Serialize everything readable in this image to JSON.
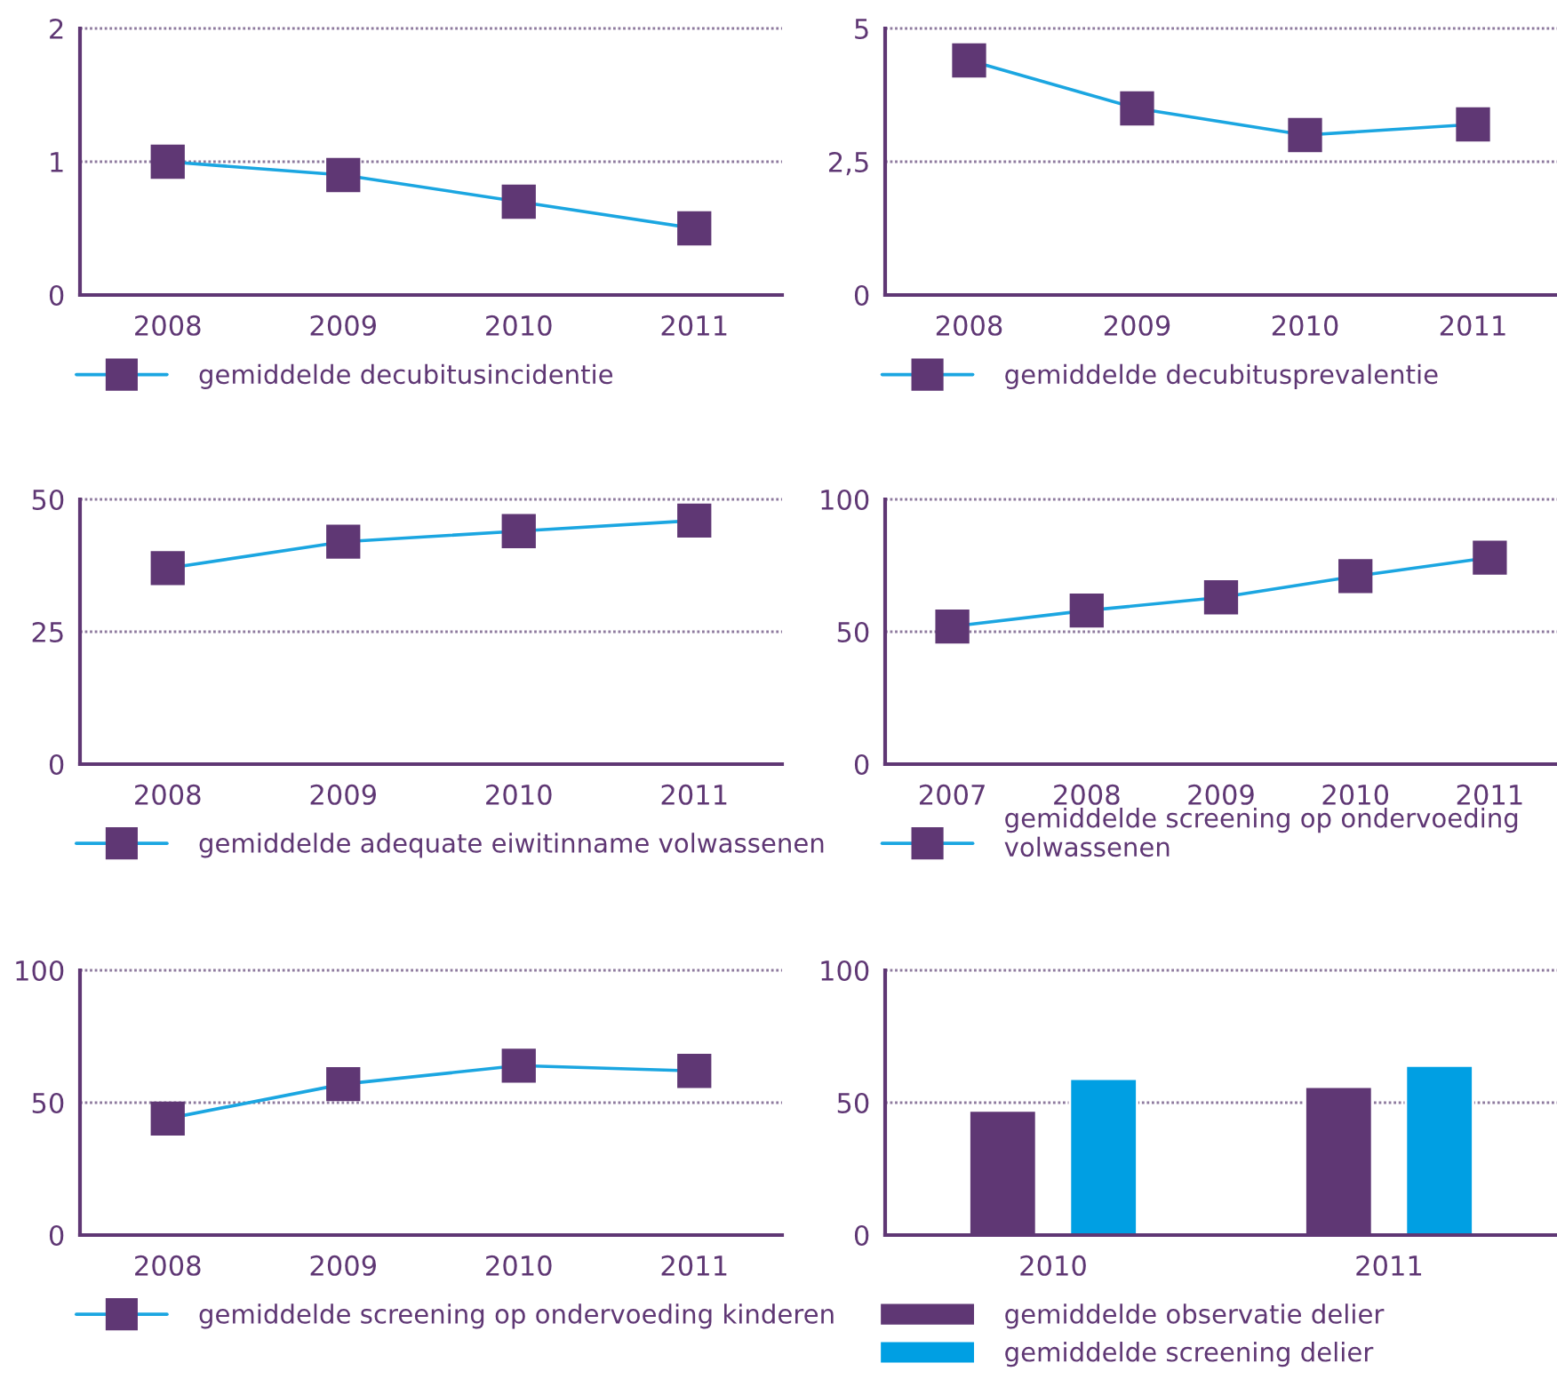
{
  "chart_data": [
    {
      "type": "line",
      "categories": [
        "2008",
        "2009",
        "2010",
        "2011"
      ],
      "series": [
        {
          "name": "gemiddelde decubitusincidentie",
          "color": "#1ba6e1",
          "colors": [
            "#5f3774",
            "#5f3774",
            "#5f3774",
            "#5f3774"
          ],
          "values": [
            1.0,
            0.9,
            0.7,
            0.5
          ]
        }
      ],
      "ylim": [
        0,
        2
      ],
      "yticks": [
        0,
        1,
        2
      ],
      "grid": "y",
      "legend": "bottom",
      "marker": "square",
      "line_style": "solid"
    },
    {
      "type": "line",
      "categories": [
        "2008",
        "2009",
        "2010",
        "2011"
      ],
      "series": [
        {
          "name": "gemiddelde decubitusprevalentie",
          "color": "#1ba6e1",
          "colors": [
            "#5f3774",
            "#5f3774",
            "#5f3774",
            "#5f3774"
          ],
          "values": [
            4.4,
            3.5,
            3.0,
            3.2
          ]
        }
      ],
      "ylim": [
        0,
        5
      ],
      "yticks": [
        0,
        {
          "value": 2.5,
          "label": "2,5"
        },
        5
      ],
      "grid": "y",
      "legend": "bottom",
      "marker": "square",
      "line_style": "solid"
    },
    {
      "type": "line",
      "categories": [
        "2008",
        "2009",
        "2010",
        "2011"
      ],
      "series": [
        {
          "name": "gemiddelde adequate eiwitinname volwassenen",
          "color": "#1ba6e1",
          "colors": [
            "#5f3774",
            "#5f3774",
            "#5f3774",
            "#5f3774"
          ],
          "values": [
            37,
            42,
            44,
            46
          ]
        }
      ],
      "ylim": [
        0,
        50
      ],
      "yticks": [
        0,
        25,
        50
      ],
      "grid": "y",
      "legend": "bottom",
      "marker": "square",
      "line_style": "solid"
    },
    {
      "type": "line",
      "categories": [
        "2007",
        "2008",
        "2009",
        "2010",
        "2011"
      ],
      "series": [
        {
          "name": "gemiddelde screening op ondervoeding volwassenen",
          "color": "#1ba6e1",
          "colors": [
            "#5f3774",
            "#5f3774",
            "#5f3774",
            "#5f3774",
            "#5f3774"
          ],
          "values": [
            52,
            58,
            63,
            71,
            78
          ]
        }
      ],
      "ylim": [
        0,
        100
      ],
      "yticks": [
        0,
        50,
        100
      ],
      "grid": "y",
      "legend": "bottom",
      "marker": "square",
      "line_style": "solid"
    },
    {
      "type": "line",
      "categories": [
        "2008",
        "2009",
        "2010",
        "2011"
      ],
      "series": [
        {
          "name": "gemiddelde screening op ondervoeding kinderen",
          "color": "#1ba6e1",
          "colors": [
            "#5f3774",
            "#5f3774",
            "#5f3774",
            "#5f3774"
          ],
          "values": [
            44,
            57,
            64,
            62
          ]
        }
      ],
      "ylim": [
        0,
        100
      ],
      "yticks": [
        0,
        50,
        100
      ],
      "grid": "y",
      "legend": "bottom",
      "marker": "square",
      "line_style": "solid"
    },
    {
      "type": "bar",
      "categories": [
        "2010",
        "2011"
      ],
      "series": [
        {
          "name": "gemiddelde observatie delier",
          "color": "#5f3774",
          "values": [
            47,
            56
          ]
        },
        {
          "name": "gemiddelde screening delier",
          "color": "#009fe3",
          "values": [
            59,
            64
          ]
        }
      ],
      "ylim": [
        0,
        100
      ],
      "yticks": [
        0,
        50,
        100
      ],
      "grid": "y",
      "legend": "bottom"
    }
  ]
}
